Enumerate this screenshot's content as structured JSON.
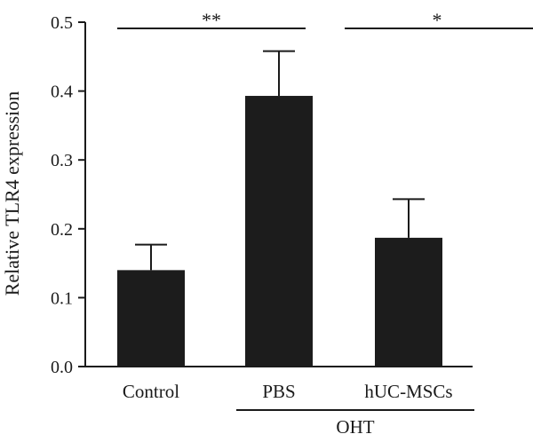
{
  "chart_data": {
    "type": "bar",
    "categories": [
      "Control",
      "PBS",
      "hUC-MSCs"
    ],
    "values": [
      0.14,
      0.393,
      0.187
    ],
    "errors": [
      0.037,
      0.065,
      0.056
    ],
    "ylabel": "Relative TLR4 expression",
    "ylim": [
      0,
      0.5
    ],
    "yticks": [
      0.0,
      0.1,
      0.2,
      0.3,
      0.4,
      0.5
    ],
    "ytick_labels": [
      "0.0",
      "0.1",
      "0.2",
      "0.3",
      "0.4",
      "0.5"
    ],
    "group_label": "OHT",
    "group_categories": [
      "PBS",
      "hUC-MSCs"
    ],
    "significance": [
      {
        "label": "**",
        "from": "Control",
        "to": "PBS"
      },
      {
        "label": "*",
        "from": "PBS",
        "to": "hUC-MSCs"
      }
    ],
    "bar_color": "#1c1c1c",
    "grid": false
  }
}
